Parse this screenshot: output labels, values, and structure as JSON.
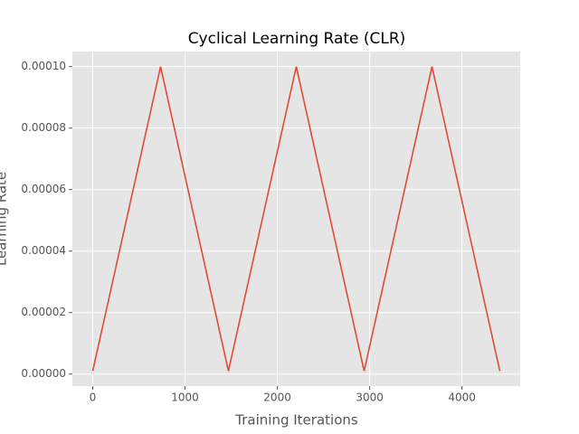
{
  "chart_data": {
    "type": "line",
    "title": "Cyclical Learning Rate (CLR)",
    "x_label": "Training Iterations",
    "y_label": "Learning Rate",
    "x": [
      0,
      735,
      1470,
      2205,
      2940,
      3675,
      4410
    ],
    "series": [
      {
        "name": "CLR",
        "color": "#e24a33",
        "values": [
          1e-06,
          0.0001,
          1e-06,
          0.0001,
          1e-06,
          0.0001,
          1e-06
        ]
      }
    ],
    "xlim": [
      -220.5,
      4630.5
    ],
    "xticks": [
      0,
      1000,
      2000,
      3000,
      4000
    ],
    "ylim": [
      -3.9e-06,
      0.0001049
    ],
    "yticks": [
      {
        "value": 0,
        "label": "0.00000"
      },
      {
        "value": 2e-05,
        "label": "0.00002"
      },
      {
        "value": 4e-05,
        "label": "0.00004"
      },
      {
        "value": 6e-05,
        "label": "0.00006"
      },
      {
        "value": 8e-05,
        "label": "0.00008"
      },
      {
        "value": 0.0001,
        "label": "0.00010"
      }
    ],
    "grid": true
  }
}
